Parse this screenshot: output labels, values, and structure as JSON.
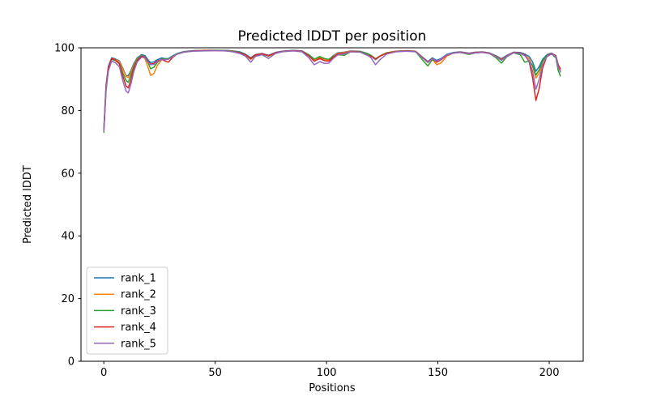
{
  "chart_data": {
    "type": "line",
    "title": "Predicted lDDT per position",
    "xlabel": "Positions",
    "ylabel": "Predicted lDDT",
    "xlim": [
      -10.25,
      215.25
    ],
    "ylim": [
      0,
      100
    ],
    "xticks": [
      0,
      50,
      100,
      150,
      200
    ],
    "yticks": [
      0,
      20,
      40,
      60,
      80,
      100
    ],
    "grid": false,
    "legend": {
      "position": "lower left",
      "edge_color": "#cccccc",
      "background": "#ffffff"
    },
    "x": [
      0,
      1,
      2,
      3.5,
      5,
      7,
      8.5,
      10,
      11,
      12,
      13.5,
      15,
      17,
      18.5,
      20,
      21,
      22.5,
      24,
      26,
      27.5,
      29,
      31,
      33,
      36,
      40,
      45,
      50,
      55,
      58,
      61,
      63.5,
      66,
      68,
      71,
      74,
      77,
      80,
      85,
      89,
      92,
      94.5,
      97,
      99,
      101,
      103,
      105,
      108,
      111,
      115,
      118,
      120,
      122,
      124,
      127,
      131,
      136,
      140,
      143.5,
      145.5,
      147.5,
      149.5,
      151.5,
      154,
      157,
      160,
      164,
      167,
      170,
      173,
      176,
      178.5,
      181,
      184,
      187,
      189,
      191,
      192.5,
      194,
      195.5,
      197,
      199,
      201,
      203,
      204,
      205
    ],
    "series": [
      {
        "name": "rank_1",
        "color": "#1f77b4",
        "values": [
          74,
          88,
          94,
          96.8,
          96.5,
          95.8,
          93.5,
          91,
          91.2,
          92.5,
          95,
          96.8,
          97.8,
          97.5,
          96,
          95.3,
          95.5,
          96.2,
          96.8,
          96.5,
          96.6,
          97.5,
          98.2,
          98.8,
          99.1,
          99.2,
          99.2,
          99.2,
          99,
          98.7,
          98,
          96.8,
          97.8,
          98.2,
          97.6,
          98.5,
          98.9,
          99.2,
          99,
          97.8,
          96.3,
          97,
          96.4,
          96.2,
          97.5,
          98.4,
          98.6,
          99,
          98.9,
          98.3,
          97.6,
          96.2,
          97.3,
          98.4,
          98.9,
          99.1,
          98.9,
          96.8,
          95.6,
          96.8,
          96,
          96.6,
          97.9,
          98.5,
          98.7,
          98.3,
          98.6,
          98.7,
          98.4,
          97.5,
          96.5,
          97.6,
          98.6,
          98.5,
          98,
          97.2,
          95.5,
          92.5,
          94,
          96.3,
          97.8,
          98.3,
          97.5,
          94.5,
          92.3
        ]
      },
      {
        "name": "rank_2",
        "color": "#ff7f0e",
        "values": [
          73.5,
          87,
          93.5,
          96.5,
          96.3,
          95.5,
          93.2,
          90.8,
          90.5,
          92,
          94.5,
          96.5,
          97.5,
          96.5,
          93.5,
          91.2,
          91.8,
          94.3,
          96.2,
          96.3,
          96.4,
          97.3,
          98,
          98.7,
          99,
          99.2,
          99.2,
          99.1,
          98.9,
          98.5,
          97.7,
          96.3,
          97.5,
          98,
          97.3,
          98.3,
          98.8,
          99.1,
          98.9,
          97.7,
          96.2,
          96.9,
          96.3,
          96.1,
          97.3,
          98.2,
          98.5,
          98.9,
          98.8,
          98.2,
          97.5,
          96.4,
          97.4,
          98.4,
          98.9,
          99,
          98.8,
          96.6,
          95.4,
          96.4,
          94.6,
          95.2,
          97.4,
          98.3,
          98.6,
          98.2,
          98.5,
          98.6,
          98.3,
          97.3,
          96.3,
          97.4,
          98.5,
          98.3,
          97.6,
          96.5,
          94,
          90.3,
          92,
          95.5,
          97.5,
          98.2,
          97.3,
          94.3,
          93
        ]
      },
      {
        "name": "rank_3",
        "color": "#2ca02c",
        "values": [
          73,
          86,
          93,
          96.3,
          96,
          95,
          92,
          89.5,
          89,
          91,
          94,
          96.3,
          97.5,
          97,
          95,
          93.3,
          93.8,
          95.3,
          96.5,
          96.4,
          96.5,
          97.4,
          98.1,
          98.7,
          99,
          99.1,
          99.2,
          99.1,
          98.9,
          98.5,
          97.8,
          96.5,
          97.6,
          98,
          97.4,
          98.4,
          98.8,
          99.1,
          98.9,
          97.8,
          96.4,
          97.2,
          96.6,
          96.3,
          97.2,
          97.8,
          97.6,
          98.8,
          98.8,
          98.2,
          97.6,
          96.5,
          97.4,
          98.4,
          98.8,
          99,
          98.8,
          95.8,
          94.2,
          96.2,
          95.6,
          96.3,
          97.7,
          98.4,
          98.5,
          97.9,
          98.4,
          98.6,
          98.3,
          96.9,
          95.1,
          97.2,
          98.4,
          97.8,
          95.4,
          95.8,
          94.5,
          91.3,
          93,
          95.8,
          97.6,
          98.1,
          96.8,
          92.8,
          91
        ]
      },
      {
        "name": "rank_4",
        "color": "#d62728",
        "values": [
          74,
          87.5,
          93.5,
          96.5,
          96.2,
          94.8,
          91,
          87.8,
          87.2,
          89.5,
          93.5,
          96,
          97.3,
          97,
          95.5,
          94.8,
          95,
          95.8,
          96.3,
          95.8,
          95.4,
          97,
          98,
          98.6,
          99,
          99.1,
          99.1,
          99,
          98.8,
          98.4,
          97.8,
          96.6,
          97.7,
          98.1,
          97.5,
          98.4,
          98.8,
          99.1,
          98.9,
          97.5,
          95.7,
          96.6,
          95.9,
          95.7,
          97,
          98,
          98.3,
          98.8,
          98.7,
          97.7,
          97.3,
          96.4,
          97.3,
          98.3,
          98.8,
          99,
          98.8,
          96.7,
          95.5,
          96.6,
          95.4,
          96.2,
          97.6,
          98.3,
          98.6,
          98.2,
          98.5,
          98.6,
          98.3,
          97.3,
          96.2,
          97.4,
          98.5,
          98.3,
          97.7,
          95.5,
          90.5,
          83.2,
          87,
          93.5,
          97.3,
          98.2,
          97.4,
          94.6,
          93.3
        ]
      },
      {
        "name": "rank_5",
        "color": "#9467bd",
        "values": [
          73.5,
          86.5,
          92.5,
          95.8,
          95.3,
          94,
          89.5,
          86.2,
          85.6,
          88,
          92.5,
          95.5,
          97,
          96.8,
          95.3,
          94.6,
          94.7,
          95.5,
          96.3,
          96.2,
          96.3,
          97.2,
          98,
          98.6,
          98.9,
          99,
          99.1,
          99,
          98.7,
          98.2,
          97.4,
          95.4,
          97.2,
          97.8,
          96.6,
          98.2,
          98.7,
          99,
          98.7,
          96.9,
          94.6,
          95.6,
          95,
          95.1,
          96.6,
          97.7,
          98.1,
          98.7,
          98.6,
          97.8,
          96.8,
          94.6,
          96.2,
          98,
          98.7,
          98.9,
          98.7,
          96.5,
          95.3,
          96.5,
          95.8,
          96.4,
          97.7,
          98.3,
          98.5,
          98.1,
          98.4,
          98.5,
          98.2,
          97.2,
          96,
          97.3,
          98.4,
          98.2,
          97.5,
          95.8,
          92.5,
          86.8,
          90,
          94.5,
          97.2,
          98,
          97.2,
          93.8,
          92.5
        ]
      }
    ]
  }
}
